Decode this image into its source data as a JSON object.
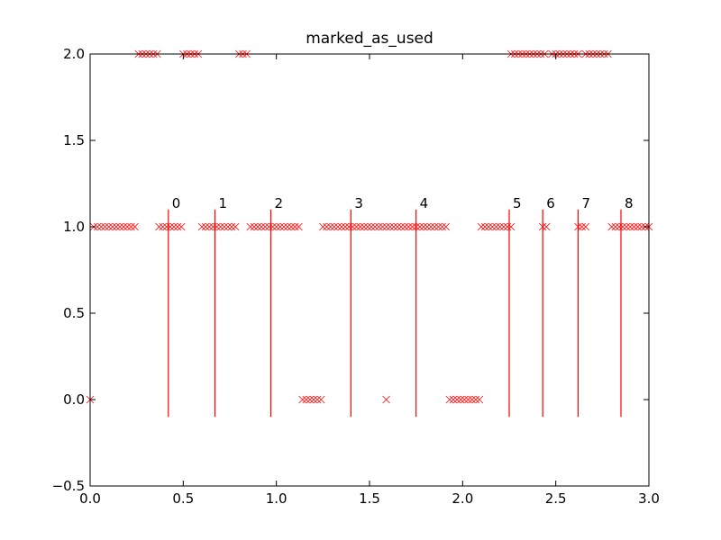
{
  "chart_data": {
    "type": "scatter",
    "title": "marked_as_used",
    "xlabel": "",
    "ylabel": "",
    "xlim": [
      0.0,
      3.0
    ],
    "ylim": [
      -0.5,
      2.0
    ],
    "grid": false,
    "marker": "x",
    "color": "#ff0000",
    "x_ticks": [
      "0.0",
      "0.5",
      "1.0",
      "1.5",
      "2.0",
      "2.5",
      "3.0"
    ],
    "y_ticks": [
      "−0.5",
      "0.0",
      "0.5",
      "1.0",
      "1.5",
      "2.0"
    ],
    "points_y2": [
      0.26,
      0.28,
      0.3,
      0.32,
      0.34,
      0.36,
      0.5,
      0.52,
      0.54,
      0.56,
      0.58,
      0.8,
      0.82,
      0.84,
      2.26,
      2.28,
      2.3,
      2.32,
      2.34,
      2.36,
      2.38,
      2.4,
      2.42,
      2.44,
      2.48,
      2.5,
      2.52,
      2.54,
      2.56,
      2.58,
      2.6,
      2.62,
      2.66,
      2.68,
      2.7,
      2.72,
      2.74,
      2.76,
      2.78
    ],
    "points_y1": [
      0.02,
      0.04,
      0.06,
      0.08,
      0.1,
      0.12,
      0.14,
      0.16,
      0.18,
      0.2,
      0.22,
      0.24,
      0.37,
      0.39,
      0.41,
      0.43,
      0.45,
      0.47,
      0.49,
      0.6,
      0.62,
      0.64,
      0.66,
      0.68,
      0.7,
      0.72,
      0.74,
      0.76,
      0.78,
      0.86,
      0.88,
      0.9,
      0.92,
      0.94,
      0.96,
      0.98,
      1.0,
      1.02,
      1.04,
      1.06,
      1.08,
      1.1,
      1.12,
      1.25,
      1.27,
      1.29,
      1.31,
      1.33,
      1.35,
      1.37,
      1.39,
      1.41,
      1.43,
      1.45,
      1.47,
      1.49,
      1.51,
      1.53,
      1.55,
      1.57,
      1.59,
      1.61,
      1.63,
      1.65,
      1.67,
      1.69,
      1.71,
      1.73,
      1.75,
      1.77,
      1.79,
      1.81,
      1.83,
      1.85,
      1.87,
      1.89,
      1.91,
      2.1,
      2.12,
      2.14,
      2.16,
      2.18,
      2.2,
      2.22,
      2.24,
      2.26,
      2.43,
      2.45,
      2.62,
      2.64,
      2.66,
      2.8,
      2.82,
      2.84,
      2.86,
      2.88,
      2.9,
      2.92,
      2.94,
      2.96,
      2.98,
      3.0
    ],
    "points_y0": [
      0.0,
      1.14,
      1.16,
      1.18,
      1.2,
      1.22,
      1.24,
      1.59,
      1.93,
      1.95,
      1.97,
      1.99,
      2.01,
      2.03,
      2.05,
      2.07,
      2.09
    ],
    "vertical_markers": [
      {
        "label": "0",
        "x": 0.42
      },
      {
        "label": "1",
        "x": 0.67
      },
      {
        "label": "2",
        "x": 0.97
      },
      {
        "label": "3",
        "x": 1.4
      },
      {
        "label": "4",
        "x": 1.75
      },
      {
        "label": "5",
        "x": 2.25
      },
      {
        "label": "6",
        "x": 2.43
      },
      {
        "label": "7",
        "x": 2.62
      },
      {
        "label": "8",
        "x": 2.85
      }
    ],
    "marker_y_range": [
      -0.1,
      1.1
    ]
  }
}
